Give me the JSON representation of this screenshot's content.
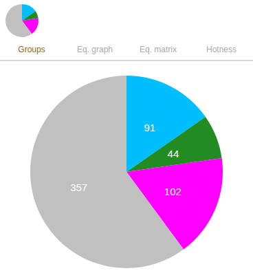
{
  "chart_data": {
    "type": "pie",
    "values": [
      91,
      44,
      102,
      357
    ],
    "colors": [
      "#00BFFF",
      "#228B22",
      "#FF00FF",
      "#C0C0C0"
    ],
    "data_labels": true,
    "annotations": [
      {
        "text": "Groups",
        "color": "#8B6914"
      },
      {
        "text": "Eq. graph",
        "color": "#aaaaaa"
      },
      {
        "text": "Eq. matrix",
        "color": "#aaaaaa"
      },
      {
        "text": "Hotness",
        "color": "#aaaaaa"
      }
    ]
  }
}
